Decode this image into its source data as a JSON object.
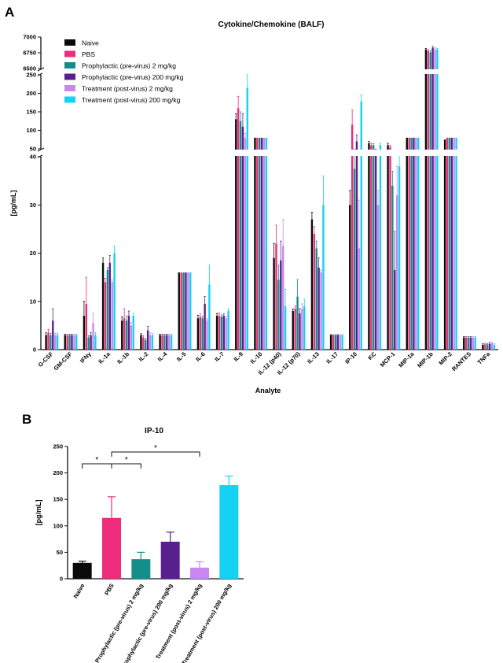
{
  "figure": {
    "panel_a_label": "A",
    "panel_b_label": "B"
  },
  "colors": {
    "Naive": "#0a0a0a",
    "PBS": "#ec2d7a",
    "Pro2": "#148e8a",
    "Pro200": "#5a1f8e",
    "Tr2": "#c987f2",
    "Tr200": "#14d2f2"
  },
  "chart_data": [
    {
      "type": "bar",
      "title": "Cytokine/Chemokine (BALF)",
      "xlabel": "Analyte",
      "ylabel": "[pg/mL]",
      "y_segments": [
        {
          "range": [
            0,
            40
          ],
          "ticks": [
            0,
            10,
            20,
            30,
            40
          ]
        },
        {
          "range": [
            50,
            250
          ],
          "ticks": [
            50,
            100,
            150,
            200,
            250
          ]
        },
        {
          "range": [
            6500,
            7000
          ],
          "ticks": [
            6500,
            6750,
            7000
          ]
        }
      ],
      "categories": [
        "G-CSF",
        "GM-CSF",
        "IFNγ",
        "IL-1a",
        "IL-1b",
        "IL-2",
        "IL-4",
        "IL-5",
        "IL-6",
        "IL-7",
        "IL-9",
        "IL-10",
        "IL-12 (p40)",
        "IL-12 (p70)",
        "IL-13",
        "IL-17",
        "IP-10",
        "KC",
        "MCP-1",
        "MIP-1a",
        "MIP-1b",
        "MIP-2",
        "RANTES",
        "TNFa"
      ],
      "series": [
        {
          "name": "Naive",
          "color_key": "Naive",
          "values": [
            3,
            3,
            7,
            18,
            6,
            3,
            3,
            16,
            6.5,
            7,
            130,
            80,
            19,
            8,
            27,
            3,
            30,
            65,
            60,
            80,
            6800,
            75,
            2.5,
            1
          ],
          "errors": [
            0.5,
            0.2,
            3,
            1,
            0.8,
            0.3,
            0.2,
            0,
            0.6,
            0.5,
            15,
            0,
            3,
            0.4,
            1.5,
            0.1,
            3,
            5,
            5,
            0,
            20,
            0,
            0.2,
            0.2
          ]
        },
        {
          "name": "PBS",
          "color_key": "PBS",
          "values": [
            3.5,
            3,
            9.5,
            14,
            6.5,
            2.5,
            3,
            16,
            6.8,
            7,
            160,
            80,
            22,
            8.5,
            24,
            3,
            115,
            60,
            55,
            80,
            6780,
            80,
            2.5,
            1.1
          ],
          "errors": [
            0.7,
            0.2,
            5.5,
            0.8,
            2,
            0.4,
            0.2,
            0,
            0.6,
            0.6,
            32,
            0,
            3.8,
            0.6,
            1.5,
            0.1,
            40,
            5,
            5,
            0,
            20,
            0,
            0.2,
            0.2
          ]
        },
        {
          "name": "Prophylactic (pre-virus) 2 mg/kg",
          "color_key": "Pro2",
          "values": [
            3,
            3,
            2.5,
            16.5,
            6,
            2,
            3,
            16,
            6.5,
            6.8,
            125,
            80,
            14.5,
            11,
            21,
            3,
            37.5,
            60,
            34,
            80,
            6760,
            80,
            2.5,
            1.1
          ],
          "errors": [
            0.4,
            0.2,
            0.4,
            0.5,
            1,
            0.3,
            0.2,
            0,
            0.4,
            0.4,
            25,
            0,
            3,
            3.5,
            1.5,
            0.1,
            12,
            4,
            3,
            0,
            20,
            0,
            0.2,
            0.2
          ]
        },
        {
          "name": "Prophylactic (pre-virus) 200 mg/kg",
          "color_key": "Pro200",
          "values": [
            6,
            3,
            3,
            18,
            7,
            4,
            3,
            16,
            9.5,
            7,
            110,
            80,
            18.5,
            7.5,
            17,
            3,
            70,
            45,
            16.5,
            80,
            6830,
            80,
            2.5,
            1.2
          ],
          "errors": [
            2.5,
            0.2,
            0.5,
            1.5,
            1,
            0.8,
            0.2,
            0,
            1.5,
            0.4,
            35,
            0,
            4,
            1,
            2,
            0.1,
            18,
            4,
            8,
            0,
            20,
            0,
            0.2,
            0.3
          ]
        },
        {
          "name": "Treatment (post-virus) 2 mg/kg",
          "color_key": "Tr2",
          "values": [
            3,
            3,
            5.5,
            14,
            5,
            3,
            3,
            16,
            6,
            6.5,
            80,
            80,
            21.5,
            8.5,
            16,
            3,
            21,
            30,
            32,
            80,
            6810,
            80,
            2.5,
            1.3
          ],
          "errors": [
            0.4,
            0.2,
            2,
            0.5,
            0.6,
            0.5,
            0.2,
            0,
            0.4,
            0.4,
            12,
            0,
            5.5,
            1,
            0.5,
            0.1,
            10,
            3,
            6,
            0,
            20,
            0,
            0.2,
            0.2
          ]
        },
        {
          "name": "Treatment (post-virus) 200 mg/kg",
          "color_key": "Tr200",
          "values": [
            3,
            3,
            3,
            20,
            7,
            3,
            3,
            16,
            13.5,
            8,
            215,
            80,
            9,
            9,
            30,
            3,
            178,
            60,
            38,
            80,
            6800,
            80,
            2.5,
            1
          ],
          "errors": [
            0.4,
            0.2,
            0.5,
            1.5,
            0.5,
            0.3,
            0.2,
            0,
            4,
            0.5,
            35,
            0,
            3.5,
            1.5,
            6,
            0.1,
            18,
            5,
            3,
            0,
            20,
            0,
            0.2,
            0.2
          ]
        }
      ]
    },
    {
      "type": "bar",
      "title": "IP-10",
      "xlabel": "",
      "ylabel": "[pg/mL]",
      "ylim": [
        0,
        250
      ],
      "yticks": [
        0,
        50,
        100,
        150,
        200,
        250
      ],
      "categories": [
        "Naive",
        "PBS",
        "Prophylactic (pre-virus) 2 mg/kg",
        "Prophylactic (pre-virus) 200 mg/kg",
        "Treatment (post-virus) 2 mg/kg",
        "Treatment (post-virus) 200 mg/kg"
      ],
      "color_keys": [
        "Naive",
        "PBS",
        "Pro2",
        "Pro200",
        "Tr2",
        "Tr200"
      ],
      "values": [
        30,
        115,
        37,
        70,
        21,
        177
      ],
      "errors": [
        3,
        40,
        13,
        18,
        11,
        17
      ],
      "significance": [
        {
          "from": "Naive",
          "to": "PBS",
          "label": "*"
        },
        {
          "from": "PBS",
          "to": "Prophylactic (pre-virus) 2 mg/kg",
          "label": "*"
        },
        {
          "from": "PBS",
          "to": "Treatment (post-virus) 2 mg/kg",
          "label": "*"
        }
      ]
    }
  ]
}
